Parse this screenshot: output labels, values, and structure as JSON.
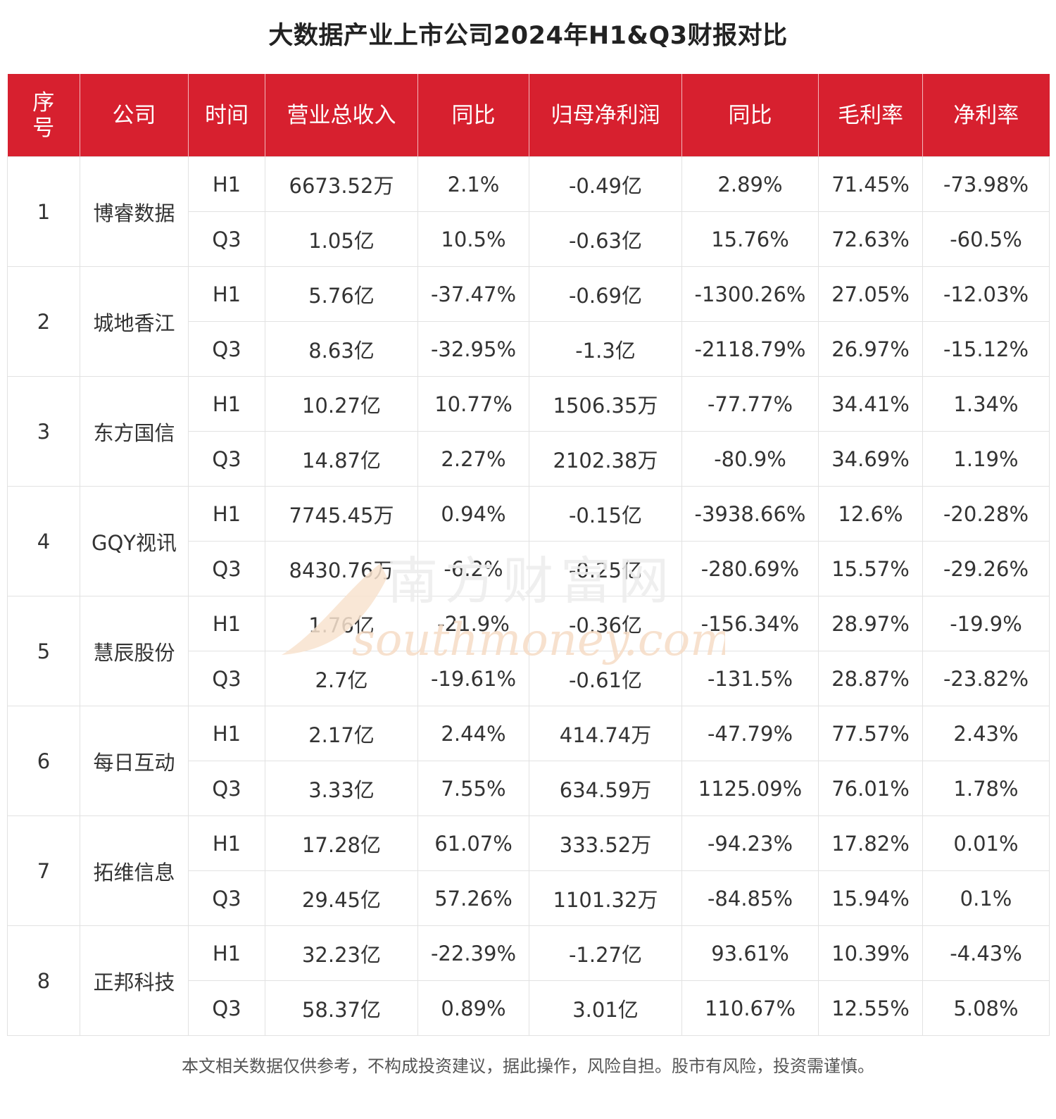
{
  "title": "大数据产业上市公司2024年H1&Q3财报对比",
  "columns": [
    "序号",
    "公司",
    "时间",
    "营业总收入",
    "同比",
    "归母净利润",
    "同比",
    "毛利率",
    "净利率"
  ],
  "rows": [
    {
      "seq": "1",
      "company": "博睿数据",
      "periods": [
        {
          "time": "H1",
          "revenue": "6673.52万",
          "revenue_yoy": "2.1%",
          "net_profit": "-0.49亿",
          "profit_yoy": "2.89%",
          "gross_margin": "71.45%",
          "net_margin": "-73.98%"
        },
        {
          "time": "Q3",
          "revenue": "1.05亿",
          "revenue_yoy": "10.5%",
          "net_profit": "-0.63亿",
          "profit_yoy": "15.76%",
          "gross_margin": "72.63%",
          "net_margin": "-60.5%"
        }
      ]
    },
    {
      "seq": "2",
      "company": "城地香江",
      "periods": [
        {
          "time": "H1",
          "revenue": "5.76亿",
          "revenue_yoy": "-37.47%",
          "net_profit": "-0.69亿",
          "profit_yoy": "-1300.26%",
          "gross_margin": "27.05%",
          "net_margin": "-12.03%"
        },
        {
          "time": "Q3",
          "revenue": "8.63亿",
          "revenue_yoy": "-32.95%",
          "net_profit": "-1.3亿",
          "profit_yoy": "-2118.79%",
          "gross_margin": "26.97%",
          "net_margin": "-15.12%"
        }
      ]
    },
    {
      "seq": "3",
      "company": "东方国信",
      "periods": [
        {
          "time": "H1",
          "revenue": "10.27亿",
          "revenue_yoy": "10.77%",
          "net_profit": "1506.35万",
          "profit_yoy": "-77.77%",
          "gross_margin": "34.41%",
          "net_margin": "1.34%"
        },
        {
          "time": "Q3",
          "revenue": "14.87亿",
          "revenue_yoy": "2.27%",
          "net_profit": "2102.38万",
          "profit_yoy": "-80.9%",
          "gross_margin": "34.69%",
          "net_margin": "1.19%"
        }
      ]
    },
    {
      "seq": "4",
      "company": "GQY视讯",
      "periods": [
        {
          "time": "H1",
          "revenue": "7745.45万",
          "revenue_yoy": "0.94%",
          "net_profit": "-0.15亿",
          "profit_yoy": "-3938.66%",
          "gross_margin": "12.6%",
          "net_margin": "-20.28%"
        },
        {
          "time": "Q3",
          "revenue": "8430.76万",
          "revenue_yoy": "-6.2%",
          "net_profit": "-0.25亿",
          "profit_yoy": "-280.69%",
          "gross_margin": "15.57%",
          "net_margin": "-29.26%"
        }
      ]
    },
    {
      "seq": "5",
      "company": "慧辰股份",
      "periods": [
        {
          "time": "H1",
          "revenue": "1.76亿",
          "revenue_yoy": "-21.9%",
          "net_profit": "-0.36亿",
          "profit_yoy": "-156.34%",
          "gross_margin": "28.97%",
          "net_margin": "-19.9%"
        },
        {
          "time": "Q3",
          "revenue": "2.7亿",
          "revenue_yoy": "-19.61%",
          "net_profit": "-0.61亿",
          "profit_yoy": "-131.5%",
          "gross_margin": "28.87%",
          "net_margin": "-23.82%"
        }
      ]
    },
    {
      "seq": "6",
      "company": "每日互动",
      "periods": [
        {
          "time": "H1",
          "revenue": "2.17亿",
          "revenue_yoy": "2.44%",
          "net_profit": "414.74万",
          "profit_yoy": "-47.79%",
          "gross_margin": "77.57%",
          "net_margin": "2.43%"
        },
        {
          "time": "Q3",
          "revenue": "3.33亿",
          "revenue_yoy": "7.55%",
          "net_profit": "634.59万",
          "profit_yoy": "1125.09%",
          "gross_margin": "76.01%",
          "net_margin": "1.78%"
        }
      ]
    },
    {
      "seq": "7",
      "company": "拓维信息",
      "periods": [
        {
          "time": "H1",
          "revenue": "17.28亿",
          "revenue_yoy": "61.07%",
          "net_profit": "333.52万",
          "profit_yoy": "-94.23%",
          "gross_margin": "17.82%",
          "net_margin": "0.01%"
        },
        {
          "time": "Q3",
          "revenue": "29.45亿",
          "revenue_yoy": "57.26%",
          "net_profit": "1101.32万",
          "profit_yoy": "-84.85%",
          "gross_margin": "15.94%",
          "net_margin": "0.1%"
        }
      ]
    },
    {
      "seq": "8",
      "company": "正邦科技",
      "periods": [
        {
          "time": "H1",
          "revenue": "32.23亿",
          "revenue_yoy": "-22.39%",
          "net_profit": "-1.27亿",
          "profit_yoy": "93.61%",
          "gross_margin": "10.39%",
          "net_margin": "-4.43%"
        },
        {
          "time": "Q3",
          "revenue": "58.37亿",
          "revenue_yoy": "0.89%",
          "net_profit": "3.01亿",
          "profit_yoy": "110.67%",
          "gross_margin": "12.55%",
          "net_margin": "5.08%"
        }
      ]
    }
  ],
  "watermark": {
    "cn": "南方财富网",
    "en": "southmoney.com"
  },
  "footnote": "本文相关数据仅供参考，不构成投资建议，据此操作，风险自担。股市有风险，投资需谨慎。",
  "colors": {
    "header_bg": "#d7202f",
    "header_text": "#ffffff",
    "grid": "#e2e2e2",
    "watermark": "#f6dcc6"
  },
  "chart_data": {
    "type": "table",
    "title": "大数据产业上市公司2024年H1&Q3财报对比",
    "columns": [
      "序号",
      "公司",
      "时间",
      "营业总收入",
      "同比",
      "归母净利润",
      "同比",
      "毛利率",
      "净利率"
    ],
    "rows": [
      [
        "1",
        "博睿数据",
        "H1",
        "6673.52万",
        "2.1%",
        "-0.49亿",
        "2.89%",
        "71.45%",
        "-73.98%"
      ],
      [
        "1",
        "博睿数据",
        "Q3",
        "1.05亿",
        "10.5%",
        "-0.63亿",
        "15.76%",
        "72.63%",
        "-60.5%"
      ],
      [
        "2",
        "城地香江",
        "H1",
        "5.76亿",
        "-37.47%",
        "-0.69亿",
        "-1300.26%",
        "27.05%",
        "-12.03%"
      ],
      [
        "2",
        "城地香江",
        "Q3",
        "8.63亿",
        "-32.95%",
        "-1.3亿",
        "-2118.79%",
        "26.97%",
        "-15.12%"
      ],
      [
        "3",
        "东方国信",
        "H1",
        "10.27亿",
        "10.77%",
        "1506.35万",
        "-77.77%",
        "34.41%",
        "1.34%"
      ],
      [
        "3",
        "东方国信",
        "Q3",
        "14.87亿",
        "2.27%",
        "2102.38万",
        "-80.9%",
        "34.69%",
        "1.19%"
      ],
      [
        "4",
        "GQY视讯",
        "H1",
        "7745.45万",
        "0.94%",
        "-0.15亿",
        "-3938.66%",
        "12.6%",
        "-20.28%"
      ],
      [
        "4",
        "GQY视讯",
        "Q3",
        "8430.76万",
        "-6.2%",
        "-0.25亿",
        "-280.69%",
        "15.57%",
        "-29.26%"
      ],
      [
        "5",
        "慧辰股份",
        "H1",
        "1.76亿",
        "-21.9%",
        "-0.36亿",
        "-156.34%",
        "28.97%",
        "-19.9%"
      ],
      [
        "5",
        "慧辰股份",
        "Q3",
        "2.7亿",
        "-19.61%",
        "-0.61亿",
        "-131.5%",
        "28.87%",
        "-23.82%"
      ],
      [
        "6",
        "每日互动",
        "H1",
        "2.17亿",
        "2.44%",
        "414.74万",
        "-47.79%",
        "77.57%",
        "2.43%"
      ],
      [
        "6",
        "每日互动",
        "Q3",
        "3.33亿",
        "7.55%",
        "634.59万",
        "1125.09%",
        "76.01%",
        "1.78%"
      ],
      [
        "7",
        "拓维信息",
        "H1",
        "17.28亿",
        "61.07%",
        "333.52万",
        "-94.23%",
        "17.82%",
        "0.01%"
      ],
      [
        "7",
        "拓维信息",
        "Q3",
        "29.45亿",
        "57.26%",
        "1101.32万",
        "-84.85%",
        "15.94%",
        "0.1%"
      ],
      [
        "8",
        "正邦科技",
        "H1",
        "32.23亿",
        "-22.39%",
        "-1.27亿",
        "93.61%",
        "10.39%",
        "-4.43%"
      ],
      [
        "8",
        "正邦科技",
        "Q3",
        "58.37亿",
        "0.89%",
        "3.01亿",
        "110.67%",
        "12.55%",
        "5.08%"
      ]
    ]
  }
}
